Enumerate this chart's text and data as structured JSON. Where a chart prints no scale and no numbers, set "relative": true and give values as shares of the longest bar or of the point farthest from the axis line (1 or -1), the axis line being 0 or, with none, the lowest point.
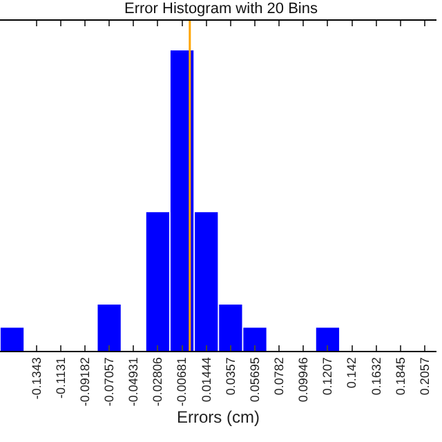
{
  "chart_data": {
    "type": "bar",
    "title": "Error Histogram with 20 Bins",
    "xlabel": "Errors (cm)",
    "relative": true,
    "x": [
      -0.1556,
      -0.1343,
      -0.1131,
      -0.09182,
      -0.07057,
      -0.04931,
      -0.02806,
      -0.00681,
      0.01444,
      0.0357,
      0.05695,
      0.0782,
      0.09946,
      0.1207,
      0.142,
      0.1632,
      0.1845,
      0.2057
    ],
    "values": [
      0.0769,
      0,
      0,
      0,
      0.1538,
      0,
      0.4615,
      1,
      0.4615,
      0.1538,
      0.0769,
      0,
      0,
      0.0769,
      0,
      0,
      0,
      0
    ],
    "color": "#0000ff",
    "xlim": [
      -0.1662,
      0.216
    ],
    "xticks": [
      -0.1343,
      -0.1131,
      -0.09182,
      -0.07057,
      -0.04931,
      -0.02806,
      -0.00681,
      0.01444,
      0.0357,
      0.05695,
      0.0782,
      0.09946,
      0.1207,
      0.142,
      0.1632,
      0.1845,
      0.2057
    ],
    "ref_lines": [
      {
        "axis": "x",
        "value": 0,
        "color": "#ffa500"
      }
    ]
  }
}
